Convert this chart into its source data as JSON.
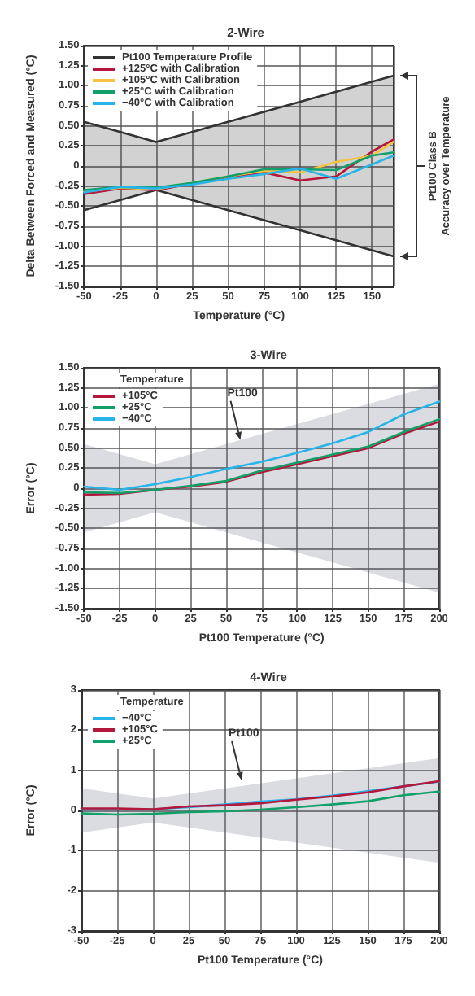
{
  "chart_data": [
    {
      "type": "line",
      "title": "2-Wire",
      "xlabel": "Temperature (°C)",
      "ylabel": "Delta Between Forced and Measured (°C)",
      "xlim": [
        -50,
        165
      ],
      "xticks": [
        -50,
        -25,
        0,
        25,
        50,
        75,
        100,
        125,
        150
      ],
      "ylim": [
        -1.5,
        1.5
      ],
      "yticks": [
        {
          "value": -1.5,
          "label": "-1.50"
        },
        -1.25,
        {
          "value": -1,
          "label": "-1.00"
        },
        -0.75,
        {
          "value": -0.5,
          "label": "-0.50"
        },
        -0.25,
        0,
        0.25,
        {
          "value": 0.5,
          "label": "0.50"
        },
        0.75,
        {
          "value": 1,
          "label": "1.00"
        },
        1.25,
        {
          "value": 1.5,
          "label": "1.50"
        }
      ],
      "grid": true,
      "legend": "top left",
      "marker": "none",
      "line_style": "solid",
      "annotations": [
        "Pt100 Class B Accuracy over Temperature"
      ],
      "series": [
        {
          "name": "Pt100 Temperature Profile",
          "color": "#333333",
          "x": [
            -50,
            0,
            165
          ],
          "values": [
            0.55,
            0.3,
            1.125
          ],
          "lower": [
            -0.55,
            -0.3,
            -1.125
          ],
          "upper": [
            0.55,
            0.3,
            1.125
          ]
        },
        {
          "color": "#333333",
          "x": [
            -50,
            0,
            165
          ],
          "values": [
            -0.55,
            -0.3,
            -1.125
          ]
        },
        {
          "name": "+125°C with Calibration",
          "color": "#b5173c",
          "x": [
            -50,
            -25,
            0,
            25,
            50,
            75,
            100,
            125,
            150,
            165
          ],
          "values": [
            -0.35,
            -0.28,
            -0.3,
            -0.22,
            -0.15,
            -0.08,
            -0.18,
            -0.13,
            0.18,
            0.33
          ]
        },
        {
          "name": "+105°C with Calibration",
          "color": "#f5c242",
          "x": [
            -50,
            -25,
            0,
            25,
            50,
            75,
            100,
            125,
            150,
            165
          ],
          "values": [
            -0.32,
            -0.27,
            -0.29,
            -0.21,
            -0.13,
            -0.06,
            -0.08,
            0.05,
            0.13,
            0.3
          ]
        },
        {
          "name": "+25°C with Calibration",
          "color": "#12a06a",
          "x": [
            -50,
            -25,
            0,
            25,
            50,
            75,
            100,
            125,
            150,
            165
          ],
          "values": [
            -0.3,
            -0.26,
            -0.27,
            -0.21,
            -0.13,
            -0.04,
            -0.04,
            -0.05,
            0.13,
            0.17
          ]
        },
        {
          "name": "−40°C with Calibration",
          "color": "#27b4e8",
          "x": [
            -50,
            -25,
            0,
            25,
            50,
            75,
            100,
            125,
            150,
            165
          ],
          "values": [
            -0.33,
            -0.26,
            -0.28,
            -0.23,
            -0.16,
            -0.1,
            -0.03,
            -0.16,
            0.02,
            0.13
          ]
        }
      ]
    },
    {
      "type": "line",
      "title": "3-Wire",
      "xlabel": "Pt100 Temperature (°C)",
      "ylabel": "Error (°C)",
      "legend_title": "Temperature",
      "xlim": [
        -50,
        200
      ],
      "xticks": [
        -50,
        -25,
        0,
        25,
        50,
        75,
        100,
        125,
        150,
        175,
        200
      ],
      "ylim": [
        -1.5,
        1.5
      ],
      "yticks": [
        {
          "value": -1.5,
          "label": "-1.50"
        },
        -1.25,
        {
          "value": -1,
          "label": "-1.00"
        },
        -0.75,
        {
          "value": -0.5,
          "label": "-0.50"
        },
        -0.25,
        0,
        0.25,
        {
          "value": 0.5,
          "label": "0.50"
        },
        0.75,
        {
          "value": 1,
          "label": "1.00"
        },
        1.25,
        {
          "value": 1.5,
          "label": "1.50"
        }
      ],
      "grid": true,
      "legend": "top left",
      "marker": "none",
      "line_style": "solid",
      "annotations": [
        {
          "text": "Pt100",
          "x": 60,
          "y": 0.6
        }
      ],
      "series": [
        {
          "color": "#5a5f78",
          "x": [
            -50,
            0,
            200
          ],
          "values": [
            null,
            null,
            null
          ],
          "lower": [
            -0.55,
            -0.3,
            -1.3
          ],
          "upper": [
            0.55,
            0.3,
            1.3
          ]
        },
        {
          "name": "+105°C",
          "color": "#b5173c",
          "x": [
            -50,
            -25,
            0,
            25,
            50,
            75,
            100,
            125,
            150,
            175,
            200
          ],
          "values": [
            -0.08,
            -0.07,
            -0.02,
            0.02,
            0.08,
            0.2,
            0.3,
            0.4,
            0.5,
            0.68,
            0.83
          ]
        },
        {
          "name": "+25°C",
          "color": "#12a06a",
          "x": [
            -50,
            -25,
            0,
            25,
            50,
            75,
            100,
            125,
            150,
            175,
            200
          ],
          "values": [
            -0.05,
            -0.06,
            -0.02,
            0.03,
            0.09,
            0.22,
            0.32,
            0.42,
            0.52,
            0.7,
            0.86
          ]
        },
        {
          "name": "−40°C",
          "color": "#27b4e8",
          "x": [
            -50,
            -25,
            0,
            25,
            50,
            75,
            100,
            125,
            150,
            175,
            200
          ],
          "values": [
            0.02,
            -0.02,
            0.05,
            0.14,
            0.24,
            0.33,
            0.44,
            0.56,
            0.7,
            0.92,
            1.08
          ]
        }
      ]
    },
    {
      "type": "line",
      "title": "4-Wire",
      "xlabel": "Pt100 Temperature (°C)",
      "ylabel": "Error (°C)",
      "legend_title": "Temperature",
      "xlim": [
        -50,
        200
      ],
      "xticks": [
        -50,
        -25,
        0,
        25,
        50,
        75,
        100,
        125,
        150,
        175,
        200
      ],
      "ylim": [
        -3,
        3
      ],
      "yticks": [
        -3,
        -2,
        -1,
        0,
        1,
        2,
        3
      ],
      "grid": true,
      "legend": "top left",
      "marker": "none",
      "line_style": "solid",
      "annotations": [
        {
          "text": "Pt100",
          "x": 62,
          "y": 0.75
        }
      ],
      "series": [
        {
          "color": "#5a5f78",
          "x": [
            -50,
            0,
            200
          ],
          "values": [
            null,
            null,
            null
          ],
          "lower": [
            -0.55,
            -0.3,
            -1.3
          ],
          "upper": [
            0.55,
            0.3,
            1.3
          ]
        },
        {
          "name": "−40°C",
          "color": "#27b4e8",
          "x": [
            -50,
            -25,
            0,
            25,
            50,
            75,
            100,
            125,
            150,
            175,
            200
          ],
          "values": [
            0.02,
            0.03,
            0.03,
            0.08,
            0.15,
            0.22,
            0.28,
            0.37,
            0.48,
            0.6,
            0.72
          ]
        },
        {
          "name": "+105°C",
          "color": "#b5173c",
          "x": [
            -50,
            -25,
            0,
            25,
            50,
            75,
            100,
            125,
            150,
            175,
            200
          ],
          "values": [
            0.05,
            0.05,
            0.03,
            0.1,
            0.13,
            0.18,
            0.27,
            0.35,
            0.45,
            0.6,
            0.73
          ]
        },
        {
          "name": "+25°C",
          "color": "#12a06a",
          "x": [
            -50,
            -25,
            0,
            25,
            50,
            75,
            100,
            125,
            150,
            175,
            200
          ],
          "values": [
            -0.07,
            -0.1,
            -0.08,
            -0.04,
            -0.02,
            0.02,
            0.08,
            0.15,
            0.23,
            0.38,
            0.47
          ]
        }
      ]
    }
  ]
}
